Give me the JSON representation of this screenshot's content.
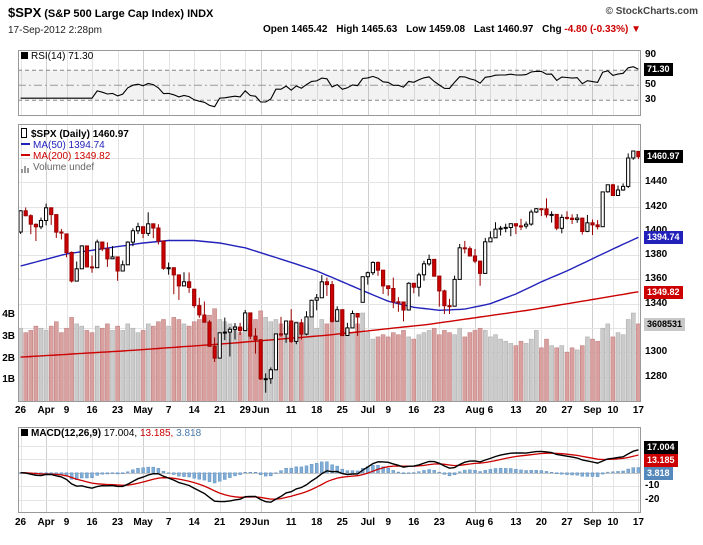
{
  "header": {
    "symbol": "$SPX",
    "name": "(S&P 500 Large Cap Index) INDX",
    "copyright": "© StockCharts.com",
    "datetime": "17-Sep-2012 2:28pm",
    "quote": {
      "open_label": "Open",
      "open": "1465.42",
      "high_label": "High",
      "high": "1465.63",
      "low_label": "Low",
      "low": "1459.08",
      "last_label": "Last",
      "last": "1460.97",
      "chg_label": "Chg",
      "chg": "-4.80 (-0.33%)",
      "arrow": "▼"
    }
  },
  "rsi_panel": {
    "legend": "RSI(14) 71.30",
    "value_label": "71.30",
    "axis": [
      90,
      70,
      50,
      30
    ]
  },
  "main_panel": {
    "legend_symbol": "$SPX (Daily) 1460.97",
    "legend_ma50": "MA(50) 1394.74",
    "legend_ma200": "MA(200) 1349.82",
    "legend_volume": "Volume undef",
    "price_label": "1460.97",
    "ma50_label": "1394.74",
    "ma200_label": "1349.82",
    "volume_label": "3608531",
    "price_axis": [
      1440,
      1420,
      1400,
      1380,
      1360,
      1340,
      1320,
      1300,
      1280
    ],
    "volume_axis": [
      "4B",
      "3B",
      "2B",
      "1B"
    ]
  },
  "macd_panel": {
    "legend_name": "MACD(12,26,9)",
    "legend_values": [
      "17.004,",
      "13.185,",
      "3.818"
    ],
    "macd_label": "17.004",
    "signal_label": "13.185",
    "hist_label": "3.818",
    "axis": [
      20,
      10,
      0,
      -10,
      -20
    ]
  },
  "colors": {
    "candle_up_fill": "#ffffff",
    "candle_up_stroke": "#000000",
    "candle_down_fill": "#cc0000",
    "candle_down_stroke": "#990000",
    "ma50": "#2222bb",
    "ma200": "#cc0000",
    "vol_up_fill": "#cbcbcb",
    "vol_up_stroke": "#a8a8a8",
    "vol_down_fill": "#d9a0a0",
    "vol_down_stroke": "#bb7777",
    "rsi_line": "#000000",
    "macd_line": "#000000",
    "signal_line": "#cc0000",
    "hist_fill": "#7fadd6",
    "hist_stroke": "#5588bb",
    "grid": "#e4e4e4",
    "grid_month": "#cfcfcf",
    "panel_border": "#999999",
    "accent_red": "#cc0000"
  },
  "chart_data": {
    "type": "candlestick",
    "symbol": "$SPX",
    "timeframe": "Daily, late Mar 2012 - 17 Sep 2012",
    "indicators": [
      "RSI(14)",
      "MA(50)",
      "MA(200)",
      "Volume",
      "MACD(12,26,9)"
    ],
    "rsi_period": 14,
    "macd_params": [
      12,
      26,
      9
    ],
    "last_values": {
      "rsi": 71.3,
      "price": 1460.97,
      "ma50": 1394.74,
      "ma200": 1349.82,
      "volume": "3608531",
      "macd": 17.004,
      "signal": 13.185,
      "hist": 3.818
    },
    "price_range": [
      1258,
      1488
    ],
    "x_ticks": [
      [
        0,
        "26",
        0
      ],
      [
        5,
        "Apr",
        1
      ],
      [
        9,
        "9",
        0
      ],
      [
        14,
        "16",
        0
      ],
      [
        19,
        "23",
        0
      ],
      [
        24,
        "May",
        1
      ],
      [
        29,
        "7",
        0
      ],
      [
        34,
        "14",
        0
      ],
      [
        39,
        "21",
        0
      ],
      [
        44,
        "29",
        0
      ],
      [
        47,
        "Jun",
        1
      ],
      [
        53,
        "11",
        0
      ],
      [
        58,
        "18",
        0
      ],
      [
        63,
        "25",
        0
      ],
      [
        68,
        "Jul",
        1
      ],
      [
        72,
        "9",
        0
      ],
      [
        77,
        "16",
        0
      ],
      [
        82,
        "23",
        0
      ],
      [
        89,
        "Aug",
        1
      ],
      [
        92,
        "6",
        0
      ],
      [
        97,
        "13",
        0
      ],
      [
        102,
        "20",
        0
      ],
      [
        107,
        "27",
        0
      ],
      [
        112,
        "Sep",
        1
      ],
      [
        116,
        "10",
        0
      ],
      [
        121,
        "17",
        0
      ]
    ],
    "candles": [
      [
        1399.0,
        1417.0,
        1397.5,
        1416.5
      ],
      [
        1416.5,
        1419.2,
        1411.9,
        1412.5
      ],
      [
        1412.5,
        1413.6,
        1397.2,
        1405.5
      ],
      [
        1405.4,
        1406.1,
        1391.6,
        1403.3
      ],
      [
        1403.3,
        1410.9,
        1401.4,
        1408.5
      ],
      [
        1408.5,
        1422.4,
        1404.5,
        1419.0
      ],
      [
        1419.0,
        1419.0,
        1404.9,
        1413.4
      ],
      [
        1413.4,
        1413.4,
        1394.1,
        1399.0
      ],
      [
        1399.0,
        1401.6,
        1392.9,
        1398.1
      ],
      [
        1397.5,
        1397.5,
        1378.2,
        1382.2
      ],
      [
        1382.2,
        1383.0,
        1357.4,
        1358.6
      ],
      [
        1358.6,
        1374.7,
        1358.6,
        1368.7
      ],
      [
        1368.7,
        1388.1,
        1368.7,
        1387.6
      ],
      [
        1387.6,
        1387.6,
        1369.8,
        1370.3
      ],
      [
        1370.3,
        1379.7,
        1365.4,
        1369.6
      ],
      [
        1369.6,
        1392.8,
        1369.6,
        1390.8
      ],
      [
        1390.8,
        1390.8,
        1383.3,
        1385.1
      ],
      [
        1385.1,
        1390.5,
        1370.3,
        1376.9
      ],
      [
        1376.9,
        1387.4,
        1376.9,
        1378.5
      ],
      [
        1378.5,
        1378.5,
        1358.8,
        1366.9
      ],
      [
        1366.9,
        1375.6,
        1366.8,
        1372.0
      ],
      [
        1372.0,
        1391.4,
        1372.0,
        1390.7
      ],
      [
        1390.7,
        1402.1,
        1387.3,
        1400.0
      ],
      [
        1400.0,
        1406.6,
        1397.3,
        1403.4
      ],
      [
        1403.4,
        1403.4,
        1394.0,
        1397.9
      ],
      [
        1397.9,
        1415.3,
        1395.7,
        1405.8
      ],
      [
        1405.8,
        1405.8,
        1393.9,
        1402.3
      ],
      [
        1402.3,
        1405.5,
        1388.7,
        1391.6
      ],
      [
        1391.6,
        1391.6,
        1367.9,
        1369.1
      ],
      [
        1368.8,
        1373.9,
        1363.9,
        1369.6
      ],
      [
        1369.6,
        1369.6,
        1347.8,
        1363.7
      ],
      [
        1363.7,
        1363.7,
        1343.1,
        1354.6
      ],
      [
        1354.6,
        1365.9,
        1354.6,
        1358.0
      ],
      [
        1358.0,
        1365.7,
        1348.9,
        1353.4
      ],
      [
        1351.9,
        1351.9,
        1336.6,
        1338.4
      ],
      [
        1338.4,
        1344.9,
        1328.4,
        1330.7
      ],
      [
        1330.7,
        1341.8,
        1324.8,
        1324.8
      ],
      [
        1324.8,
        1326.4,
        1304.9,
        1304.9
      ],
      [
        1304.9,
        1312.2,
        1292.0,
        1295.2
      ],
      [
        1295.2,
        1316.4,
        1295.2,
        1316.0
      ],
      [
        1316.0,
        1328.5,
        1310.0,
        1316.6
      ],
      [
        1316.6,
        1320.7,
        1296.5,
        1318.9
      ],
      [
        1318.9,
        1324.1,
        1310.5,
        1320.7
      ],
      [
        1320.7,
        1324.2,
        1314.2,
        1317.8
      ],
      [
        1317.8,
        1334.9,
        1317.8,
        1332.4
      ],
      [
        1332.4,
        1332.4,
        1310.8,
        1313.3
      ],
      [
        1313.3,
        1319.7,
        1298.9,
        1310.3
      ],
      [
        1310.3,
        1310.3,
        1277.2,
        1278.0
      ],
      [
        1278.0,
        1282.6,
        1266.7,
        1278.2
      ],
      [
        1278.2,
        1287.5,
        1274.0,
        1285.5
      ],
      [
        1285.5,
        1315.1,
        1285.5,
        1315.1
      ],
      [
        1315.1,
        1329.1,
        1312.7,
        1315.0
      ],
      [
        1315.0,
        1325.8,
        1307.8,
        1325.7
      ],
      [
        1325.7,
        1335.5,
        1307.7,
        1308.9
      ],
      [
        1308.9,
        1324.3,
        1306.6,
        1324.2
      ],
      [
        1324.2,
        1327.3,
        1310.5,
        1314.9
      ],
      [
        1314.9,
        1333.7,
        1314.0,
        1329.1
      ],
      [
        1329.1,
        1343.3,
        1329.1,
        1342.8
      ],
      [
        1342.8,
        1348.0,
        1334.5,
        1344.8
      ],
      [
        1344.8,
        1363.5,
        1344.8,
        1358.0
      ],
      [
        1358.0,
        1361.5,
        1346.4,
        1355.7
      ],
      [
        1355.7,
        1358.7,
        1324.4,
        1325.5
      ],
      [
        1325.5,
        1337.8,
        1325.5,
        1335.0
      ],
      [
        1335.0,
        1335.0,
        1313.3,
        1313.7
      ],
      [
        1313.7,
        1324.2,
        1313.7,
        1320.0
      ],
      [
        1320.0,
        1334.4,
        1320.0,
        1331.9
      ],
      [
        1331.9,
        1331.9,
        1313.3,
        1329.0
      ],
      [
        1341.1,
        1362.2,
        1341.1,
        1362.2
      ],
      [
        1362.2,
        1366.4,
        1355.7,
        1365.5
      ],
      [
        1365.5,
        1374.8,
        1363.5,
        1374.0
      ],
      [
        1374.0,
        1374.7,
        1363.0,
        1367.6
      ],
      [
        1367.6,
        1367.6,
        1348.0,
        1354.7
      ],
      [
        1354.7,
        1354.9,
        1346.6,
        1352.5
      ],
      [
        1352.5,
        1361.5,
        1336.3,
        1341.5
      ],
      [
        1341.5,
        1345.3,
        1333.3,
        1341.4
      ],
      [
        1341.4,
        1341.4,
        1325.4,
        1334.8
      ],
      [
        1334.8,
        1357.7,
        1334.8,
        1356.8
      ],
      [
        1356.8,
        1357.0,
        1348.5,
        1353.6
      ],
      [
        1353.6,
        1365.4,
        1345.9,
        1363.7
      ],
      [
        1363.7,
        1375.3,
        1358.9,
        1372.8
      ],
      [
        1372.8,
        1380.4,
        1371.2,
        1376.5
      ],
      [
        1376.5,
        1376.5,
        1362.2,
        1362.7
      ],
      [
        1362.7,
        1362.7,
        1337.6,
        1350.5
      ],
      [
        1350.5,
        1351.5,
        1331.5,
        1338.3
      ],
      [
        1338.3,
        1343.9,
        1331.5,
        1337.9
      ],
      [
        1337.9,
        1363.1,
        1337.9,
        1360.0
      ],
      [
        1360.0,
        1389.2,
        1360.0,
        1386.0
      ],
      [
        1386.0,
        1391.7,
        1381.4,
        1385.3
      ],
      [
        1385.3,
        1387.2,
        1379.0,
        1379.3
      ],
      [
        1379.3,
        1385.0,
        1373.4,
        1375.1
      ],
      [
        1375.1,
        1375.1,
        1354.7,
        1365.0
      ],
      [
        1365.0,
        1394.2,
        1365.0,
        1391.0
      ],
      [
        1391.0,
        1399.6,
        1391.0,
        1394.2
      ],
      [
        1394.2,
        1407.1,
        1394.2,
        1401.4
      ],
      [
        1401.4,
        1404.1,
        1396.1,
        1402.2
      ],
      [
        1402.2,
        1405.9,
        1398.8,
        1402.8
      ],
      [
        1402.8,
        1406.0,
        1395.6,
        1405.9
      ],
      [
        1405.9,
        1405.9,
        1397.3,
        1404.1
      ],
      [
        1404.1,
        1410.0,
        1400.6,
        1403.9
      ],
      [
        1403.9,
        1407.7,
        1401.8,
        1405.5
      ],
      [
        1405.5,
        1417.4,
        1404.2,
        1415.5
      ],
      [
        1415.5,
        1418.7,
        1414.7,
        1418.2
      ],
      [
        1418.2,
        1418.2,
        1412.1,
        1418.1
      ],
      [
        1418.1,
        1426.7,
        1410.9,
        1413.2
      ],
      [
        1413.2,
        1416.1,
        1406.8,
        1413.5
      ],
      [
        1413.5,
        1413.5,
        1400.5,
        1402.1
      ],
      [
        1402.1,
        1413.5,
        1398.0,
        1411.1
      ],
      [
        1411.1,
        1416.2,
        1409.1,
        1410.4
      ],
      [
        1410.4,
        1413.6,
        1405.6,
        1409.3
      ],
      [
        1409.3,
        1413.9,
        1406.6,
        1410.5
      ],
      [
        1410.5,
        1410.5,
        1397.0,
        1399.5
      ],
      [
        1399.5,
        1413.1,
        1398.9,
        1406.6
      ],
      [
        1406.6,
        1409.3,
        1396.6,
        1404.9
      ],
      [
        1404.9,
        1408.8,
        1401.2,
        1403.4
      ],
      [
        1403.4,
        1432.1,
        1403.4,
        1432.1
      ],
      [
        1432.1,
        1437.9,
        1431.4,
        1437.9
      ],
      [
        1437.9,
        1438.7,
        1429.0,
        1429.1
      ],
      [
        1429.1,
        1437.3,
        1429.1,
        1433.6
      ],
      [
        1433.6,
        1439.1,
        1433.0,
        1436.6
      ],
      [
        1436.6,
        1463.8,
        1435.3,
        1460.0
      ],
      [
        1460.0,
        1465.8,
        1458.5,
        1465.8
      ],
      [
        1465.4,
        1465.6,
        1459.1,
        1461.0
      ]
    ],
    "volumes_billions": [
      3.4,
      3.2,
      3.3,
      3.5,
      3.4,
      3.3,
      3.5,
      3.7,
      3.2,
      3.4,
      3.9,
      3.6,
      3.5,
      3.3,
      3.2,
      3.5,
      3.4,
      3.6,
      3.3,
      3.5,
      3.3,
      3.6,
      3.4,
      3.2,
      3.3,
      3.6,
      3.5,
      3.7,
      3.8,
      3.5,
      3.9,
      3.8,
      3.6,
      3.5,
      3.7,
      3.8,
      3.9,
      4.0,
      4.3,
      3.8,
      3.7,
      3.6,
      3.5,
      3.2,
      3.4,
      3.6,
      3.8,
      4.2,
      3.9,
      3.7,
      3.8,
      3.6,
      3.5,
      3.6,
      3.7,
      3.5,
      3.6,
      4.4,
      3.4,
      3.8,
      3.6,
      3.9,
      3.7,
      3.3,
      3.4,
      3.2,
      3.6,
      4.1,
      3.2,
      2.9,
      3.0,
      3.1,
      3.0,
      3.2,
      3.1,
      3.3,
      3.0,
      2.9,
      3.1,
      3.2,
      3.3,
      3.4,
      3.1,
      3.3,
      3.2,
      3.1,
      3.4,
      3.0,
      3.2,
      3.3,
      3.4,
      3.3,
      3.0,
      3.1,
      2.9,
      2.8,
      2.7,
      2.6,
      2.8,
      2.7,
      2.9,
      3.3,
      2.5,
      2.9,
      2.6,
      2.5,
      2.6,
      2.3,
      2.5,
      2.4,
      2.6,
      3.0,
      2.9,
      2.8,
      3.4,
      3.6,
      3.0,
      3.2,
      3.1,
      3.8,
      4.1,
      3.6
    ],
    "ma50_points": [
      [
        0,
        1371
      ],
      [
        9,
        1381
      ],
      [
        19,
        1387
      ],
      [
        24,
        1390
      ],
      [
        29,
        1392
      ],
      [
        34,
        1392
      ],
      [
        39,
        1390
      ],
      [
        44,
        1386
      ],
      [
        47,
        1382
      ],
      [
        53,
        1374
      ],
      [
        58,
        1367
      ],
      [
        63,
        1358
      ],
      [
        68,
        1349
      ],
      [
        72,
        1342
      ],
      [
        77,
        1337
      ],
      [
        82,
        1334.5
      ],
      [
        87,
        1335.5
      ],
      [
        92,
        1340
      ],
      [
        97,
        1348
      ],
      [
        102,
        1358
      ],
      [
        107,
        1367
      ],
      [
        112,
        1377
      ],
      [
        116,
        1385
      ],
      [
        121,
        1394.7
      ]
    ],
    "ma200_points": [
      [
        0,
        1296
      ],
      [
        20,
        1301
      ],
      [
        40,
        1307
      ],
      [
        60,
        1314
      ],
      [
        80,
        1323
      ],
      [
        100,
        1335
      ],
      [
        110,
        1342
      ],
      [
        121,
        1349.8
      ]
    ]
  }
}
